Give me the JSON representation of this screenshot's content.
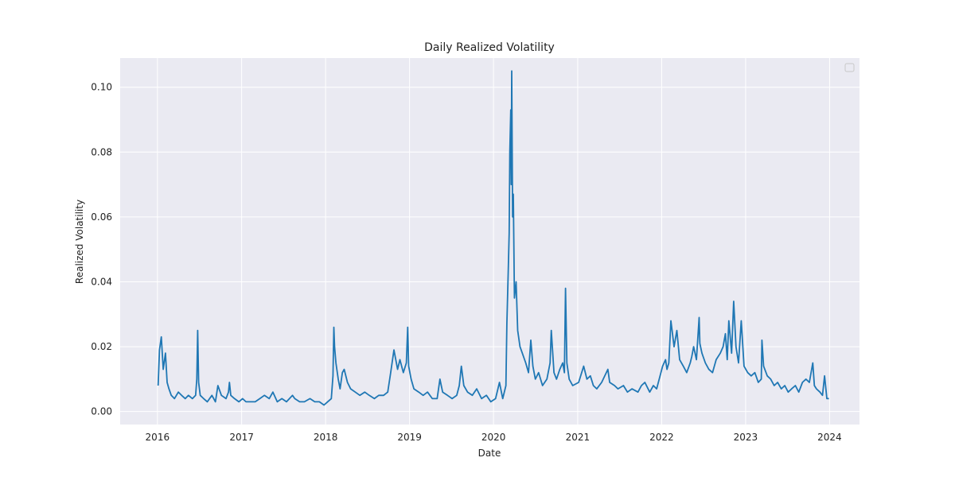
{
  "chart_data": {
    "type": "line",
    "title": "Daily Realized Volatility",
    "xlabel": "Date",
    "ylabel": "Realized Volatility",
    "x_ticks": [
      "2016",
      "2017",
      "2018",
      "2019",
      "2020",
      "2021",
      "2022",
      "2023",
      "2024"
    ],
    "y_ticks": [
      "0.00",
      "0.02",
      "0.04",
      "0.06",
      "0.08",
      "0.10"
    ],
    "xlim": [
      "2015-07-23",
      "2024-05-10"
    ],
    "ylim": [
      -0.004,
      0.109
    ],
    "grid": true,
    "legend": "upper-right (empty)",
    "colors": {
      "background": "#eaeaf2",
      "grid": "#ffffff",
      "line": "#1f77b4"
    },
    "series": [
      {
        "x": [
          "2016-01-04",
          "2016-01-10",
          "2016-01-18",
          "2016-01-26",
          "2016-02-05",
          "2016-02-12",
          "2016-02-20",
          "2016-03-01",
          "2016-03-15",
          "2016-04-01",
          "2016-04-15",
          "2016-05-01",
          "2016-05-15",
          "2016-06-01",
          "2016-06-15",
          "2016-06-20",
          "2016-06-24",
          "2016-06-28",
          "2016-07-05",
          "2016-07-20",
          "2016-08-05",
          "2016-08-25",
          "2016-09-09",
          "2016-09-20",
          "2016-10-05",
          "2016-10-25",
          "2016-11-05",
          "2016-11-09",
          "2016-11-15",
          "2016-12-01",
          "2016-12-20",
          "2017-01-05",
          "2017-01-20",
          "2017-02-10",
          "2017-03-01",
          "2017-03-21",
          "2017-04-10",
          "2017-05-01",
          "2017-05-17",
          "2017-06-05",
          "2017-06-25",
          "2017-07-15",
          "2017-08-10",
          "2017-08-20",
          "2017-09-10",
          "2017-10-01",
          "2017-10-25",
          "2017-11-15",
          "2017-12-05",
          "2017-12-25",
          "2018-01-10",
          "2018-01-26",
          "2018-02-02",
          "2018-02-06",
          "2018-02-09",
          "2018-02-15",
          "2018-02-25",
          "2018-03-05",
          "2018-03-15",
          "2018-03-23",
          "2018-04-06",
          "2018-04-20",
          "2018-05-10",
          "2018-05-30",
          "2018-06-20",
          "2018-07-10",
          "2018-08-01",
          "2018-08-20",
          "2018-09-10",
          "2018-09-28",
          "2018-10-11",
          "2018-10-25",
          "2018-11-10",
          "2018-11-20",
          "2018-12-05",
          "2018-12-18",
          "2018-12-24",
          "2018-12-28",
          "2019-01-08",
          "2019-01-20",
          "2019-02-10",
          "2019-03-01",
          "2019-03-20",
          "2019-04-10",
          "2019-05-01",
          "2019-05-13",
          "2019-05-25",
          "2019-06-15",
          "2019-07-05",
          "2019-07-25",
          "2019-08-05",
          "2019-08-14",
          "2019-08-25",
          "2019-09-10",
          "2019-10-01",
          "2019-10-20",
          "2019-11-10",
          "2019-12-01",
          "2019-12-20",
          "2020-01-10",
          "2020-01-27",
          "2020-02-10",
          "2020-02-24",
          "2020-02-28",
          "2020-03-05",
          "2020-03-09",
          "2020-03-12",
          "2020-03-16",
          "2020-03-18",
          "2020-03-20",
          "2020-03-24",
          "2020-03-27",
          "2020-04-01",
          "2020-04-08",
          "2020-04-15",
          "2020-04-25",
          "2020-05-05",
          "2020-05-20",
          "2020-06-01",
          "2020-06-11",
          "2020-06-20",
          "2020-07-01",
          "2020-07-15",
          "2020-08-01",
          "2020-08-20",
          "2020-09-03",
          "2020-09-08",
          "2020-09-20",
          "2020-10-01",
          "2020-10-15",
          "2020-10-28",
          "2020-11-04",
          "2020-11-09",
          "2020-11-15",
          "2020-11-25",
          "2020-12-10",
          "2021-01-05",
          "2021-01-27",
          "2021-02-10",
          "2021-02-25",
          "2021-03-10",
          "2021-03-25",
          "2021-04-15",
          "2021-05-12",
          "2021-05-20",
          "2021-06-10",
          "2021-06-25",
          "2021-07-19",
          "2021-08-05",
          "2021-08-25",
          "2021-09-20",
          "2021-10-05",
          "2021-10-20",
          "2021-11-10",
          "2021-11-26",
          "2021-12-10",
          "2021-12-25",
          "2022-01-05",
          "2022-01-18",
          "2022-01-24",
          "2022-02-01",
          "2022-02-10",
          "2022-02-24",
          "2022-03-08",
          "2022-03-20",
          "2022-04-05",
          "2022-04-20",
          "2022-05-05",
          "2022-05-12",
          "2022-05-20",
          "2022-06-01",
          "2022-06-13",
          "2022-06-16",
          "2022-06-25",
          "2022-07-10",
          "2022-07-25",
          "2022-08-10",
          "2022-08-26",
          "2022-09-13",
          "2022-09-25",
          "2022-10-05",
          "2022-10-13",
          "2022-10-20",
          "2022-11-01",
          "2022-11-10",
          "2022-11-20",
          "2022-12-01",
          "2022-12-13",
          "2022-12-25",
          "2023-01-10",
          "2023-01-25",
          "2023-02-10",
          "2023-02-25",
          "2023-03-10",
          "2023-03-13",
          "2023-03-20",
          "2023-04-05",
          "2023-04-20",
          "2023-05-05",
          "2023-05-20",
          "2023-06-05",
          "2023-06-20",
          "2023-07-05",
          "2023-07-20",
          "2023-08-05",
          "2023-08-20",
          "2023-09-05",
          "2023-09-20",
          "2023-10-05",
          "2023-10-20",
          "2023-10-27",
          "2023-11-05",
          "2023-11-20",
          "2023-12-01",
          "2023-12-10",
          "2023-12-20",
          "2023-12-29"
        ],
        "values": [
          0.008,
          0.019,
          0.023,
          0.013,
          0.018,
          0.009,
          0.007,
          0.005,
          0.004,
          0.006,
          0.005,
          0.004,
          0.005,
          0.004,
          0.005,
          0.01,
          0.025,
          0.009,
          0.005,
          0.004,
          0.003,
          0.005,
          0.003,
          0.008,
          0.005,
          0.004,
          0.006,
          0.009,
          0.005,
          0.004,
          0.003,
          0.004,
          0.003,
          0.003,
          0.003,
          0.004,
          0.005,
          0.004,
          0.006,
          0.003,
          0.004,
          0.003,
          0.005,
          0.004,
          0.003,
          0.003,
          0.004,
          0.003,
          0.003,
          0.002,
          0.003,
          0.004,
          0.011,
          0.026,
          0.02,
          0.015,
          0.01,
          0.007,
          0.012,
          0.013,
          0.009,
          0.007,
          0.006,
          0.005,
          0.006,
          0.005,
          0.004,
          0.005,
          0.005,
          0.006,
          0.012,
          0.019,
          0.013,
          0.016,
          0.012,
          0.015,
          0.026,
          0.014,
          0.01,
          0.007,
          0.006,
          0.005,
          0.006,
          0.004,
          0.004,
          0.01,
          0.006,
          0.005,
          0.004,
          0.005,
          0.008,
          0.014,
          0.008,
          0.006,
          0.005,
          0.007,
          0.004,
          0.005,
          0.003,
          0.004,
          0.009,
          0.004,
          0.008,
          0.027,
          0.043,
          0.055,
          0.08,
          0.093,
          0.07,
          0.105,
          0.06,
          0.067,
          0.035,
          0.04,
          0.025,
          0.02,
          0.018,
          0.015,
          0.012,
          0.022,
          0.014,
          0.01,
          0.012,
          0.008,
          0.01,
          0.015,
          0.025,
          0.012,
          0.01,
          0.013,
          0.015,
          0.012,
          0.038,
          0.015,
          0.01,
          0.008,
          0.009,
          0.014,
          0.01,
          0.011,
          0.008,
          0.007,
          0.009,
          0.013,
          0.009,
          0.008,
          0.007,
          0.008,
          0.006,
          0.007,
          0.006,
          0.008,
          0.009,
          0.006,
          0.008,
          0.007,
          0.011,
          0.014,
          0.016,
          0.013,
          0.015,
          0.028,
          0.02,
          0.025,
          0.016,
          0.014,
          0.012,
          0.015,
          0.017,
          0.02,
          0.016,
          0.029,
          0.021,
          0.018,
          0.015,
          0.013,
          0.012,
          0.016,
          0.018,
          0.02,
          0.024,
          0.016,
          0.028,
          0.018,
          0.034,
          0.02,
          0.015,
          0.028,
          0.014,
          0.012,
          0.011,
          0.012,
          0.009,
          0.01,
          0.022,
          0.014,
          0.011,
          0.01,
          0.008,
          0.009,
          0.007,
          0.008,
          0.006,
          0.007,
          0.008,
          0.006,
          0.009,
          0.01,
          0.009,
          0.015,
          0.008,
          0.007,
          0.006,
          0.005,
          0.011,
          0.004,
          0.004
        ]
      }
    ]
  }
}
